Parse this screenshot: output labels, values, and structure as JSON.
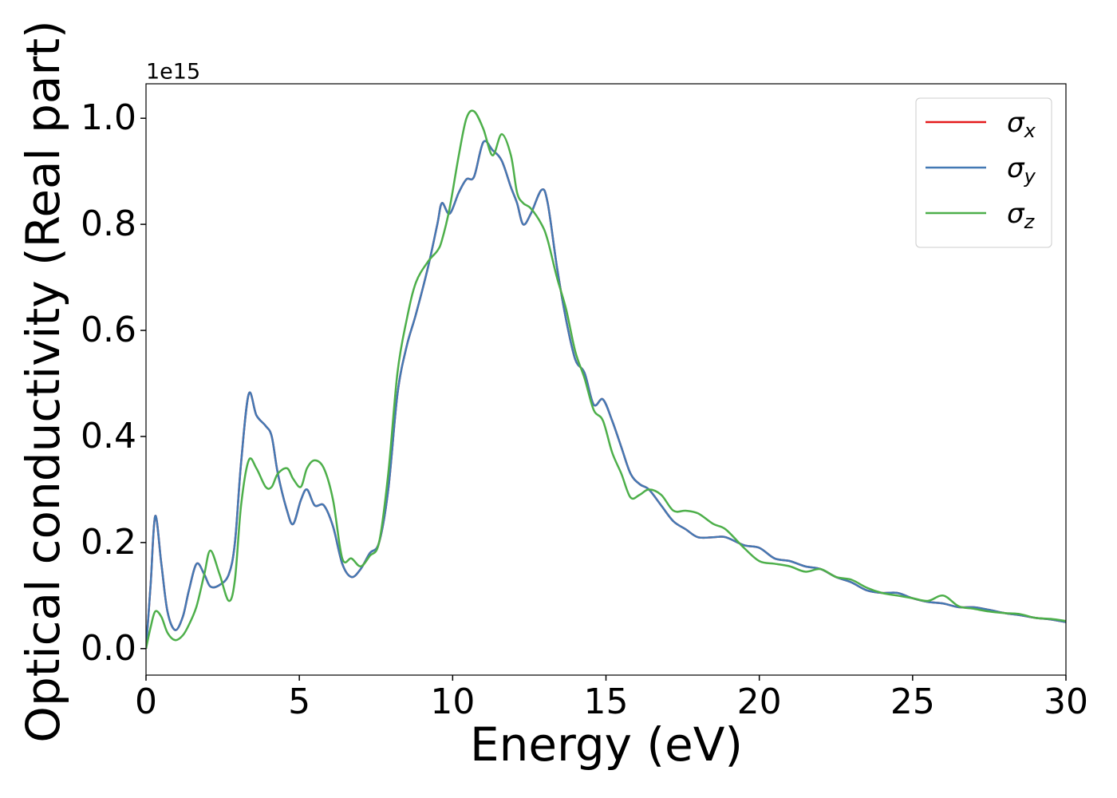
{
  "chart_data": {
    "type": "line",
    "x_label": "Energy (eV)",
    "y_label": "Optical conductivity (Real part)",
    "y_offset_label": "1e15",
    "x": [
      0,
      0.15,
      0.3,
      0.5,
      0.7,
      0.95,
      1.2,
      1.4,
      1.65,
      1.9,
      2.1,
      2.4,
      2.7,
      2.9,
      3.1,
      3.35,
      3.6,
      3.9,
      4.1,
      4.3,
      4.6,
      4.8,
      5.05,
      5.25,
      5.5,
      5.8,
      6.1,
      6.4,
      6.7,
      7.0,
      7.3,
      7.6,
      7.9,
      8.2,
      8.5,
      8.8,
      9.2,
      9.5,
      9.65,
      9.9,
      10.2,
      10.45,
      10.7,
      11.0,
      11.3,
      11.6,
      11.9,
      12.1,
      12.3,
      12.55,
      12.9,
      13.1,
      13.4,
      13.7,
      14.0,
      14.3,
      14.6,
      14.9,
      15.2,
      15.5,
      15.8,
      16.1,
      16.4,
      16.8,
      17.2,
      17.6,
      18.0,
      18.5,
      18.9,
      19.5,
      20,
      20.5,
      21,
      21.5,
      22,
      22.5,
      23,
      23.5,
      24,
      24.5,
      25,
      25.5,
      26,
      26.5,
      27,
      27.5,
      28,
      28.5,
      29,
      29.5,
      30
    ],
    "series": [
      {
        "name": "σx",
        "color": "#e41a1c",
        "values": [
          0,
          0.12,
          0.25,
          0.16,
          0.07,
          0.035,
          0.06,
          0.11,
          0.16,
          0.14,
          0.117,
          0.12,
          0.14,
          0.2,
          0.35,
          0.48,
          0.44,
          0.42,
          0.4,
          0.33,
          0.26,
          0.235,
          0.28,
          0.3,
          0.27,
          0.27,
          0.23,
          0.16,
          0.135,
          0.15,
          0.18,
          0.2,
          0.3,
          0.48,
          0.57,
          0.63,
          0.72,
          0.8,
          0.84,
          0.82,
          0.86,
          0.885,
          0.89,
          0.955,
          0.94,
          0.92,
          0.87,
          0.84,
          0.8,
          0.82,
          0.865,
          0.84,
          0.72,
          0.62,
          0.545,
          0.52,
          0.46,
          0.47,
          0.43,
          0.38,
          0.33,
          0.31,
          0.3,
          0.27,
          0.24,
          0.225,
          0.21,
          0.21,
          0.21,
          0.195,
          0.19,
          0.17,
          0.165,
          0.155,
          0.15,
          0.135,
          0.125,
          0.11,
          0.105,
          0.105,
          0.095,
          0.088,
          0.085,
          0.078,
          0.078,
          0.073,
          0.067,
          0.063,
          0.058,
          0.055,
          0.05
        ]
      },
      {
        "name": "σy",
        "color": "#4379b4",
        "values": [
          0,
          0.12,
          0.25,
          0.16,
          0.07,
          0.035,
          0.06,
          0.11,
          0.16,
          0.14,
          0.117,
          0.12,
          0.14,
          0.2,
          0.35,
          0.48,
          0.44,
          0.42,
          0.4,
          0.33,
          0.26,
          0.235,
          0.28,
          0.3,
          0.27,
          0.27,
          0.23,
          0.16,
          0.135,
          0.15,
          0.18,
          0.2,
          0.3,
          0.48,
          0.57,
          0.63,
          0.72,
          0.8,
          0.84,
          0.82,
          0.86,
          0.885,
          0.89,
          0.955,
          0.94,
          0.92,
          0.87,
          0.84,
          0.8,
          0.82,
          0.865,
          0.84,
          0.72,
          0.62,
          0.545,
          0.52,
          0.46,
          0.47,
          0.43,
          0.38,
          0.33,
          0.31,
          0.3,
          0.27,
          0.24,
          0.225,
          0.21,
          0.21,
          0.21,
          0.195,
          0.19,
          0.17,
          0.165,
          0.155,
          0.15,
          0.135,
          0.125,
          0.11,
          0.105,
          0.105,
          0.095,
          0.088,
          0.085,
          0.078,
          0.078,
          0.073,
          0.067,
          0.063,
          0.058,
          0.055,
          0.05
        ]
      },
      {
        "name": "σz",
        "color": "#4daf4a",
        "values": [
          0,
          0.04,
          0.07,
          0.06,
          0.03,
          0.016,
          0.025,
          0.045,
          0.08,
          0.14,
          0.185,
          0.14,
          0.09,
          0.13,
          0.27,
          0.355,
          0.34,
          0.305,
          0.305,
          0.33,
          0.34,
          0.32,
          0.305,
          0.34,
          0.355,
          0.34,
          0.28,
          0.17,
          0.17,
          0.155,
          0.175,
          0.2,
          0.33,
          0.52,
          0.62,
          0.69,
          0.73,
          0.75,
          0.77,
          0.83,
          0.93,
          1.0,
          1.013,
          0.98,
          0.93,
          0.97,
          0.93,
          0.86,
          0.84,
          0.83,
          0.8,
          0.77,
          0.7,
          0.64,
          0.56,
          0.51,
          0.45,
          0.43,
          0.37,
          0.33,
          0.285,
          0.29,
          0.3,
          0.29,
          0.26,
          0.26,
          0.255,
          0.235,
          0.225,
          0.19,
          0.165,
          0.16,
          0.155,
          0.145,
          0.15,
          0.135,
          0.13,
          0.115,
          0.105,
          0.1,
          0.095,
          0.09,
          0.1,
          0.08,
          0.075,
          0.07,
          0.067,
          0.065,
          0.058,
          0.056,
          0.052
        ]
      }
    ],
    "xlim": [
      0,
      30
    ],
    "xticks": [
      0,
      5,
      10,
      15,
      20,
      25,
      30
    ],
    "ylim": [
      -0.05,
      1.065
    ],
    "yticks": [
      {
        "value": 0,
        "label": "0.0"
      },
      0.2,
      0.4,
      0.6,
      0.8,
      {
        "value": 1,
        "label": "1.0"
      }
    ],
    "grid": false,
    "legend": "upper right"
  }
}
